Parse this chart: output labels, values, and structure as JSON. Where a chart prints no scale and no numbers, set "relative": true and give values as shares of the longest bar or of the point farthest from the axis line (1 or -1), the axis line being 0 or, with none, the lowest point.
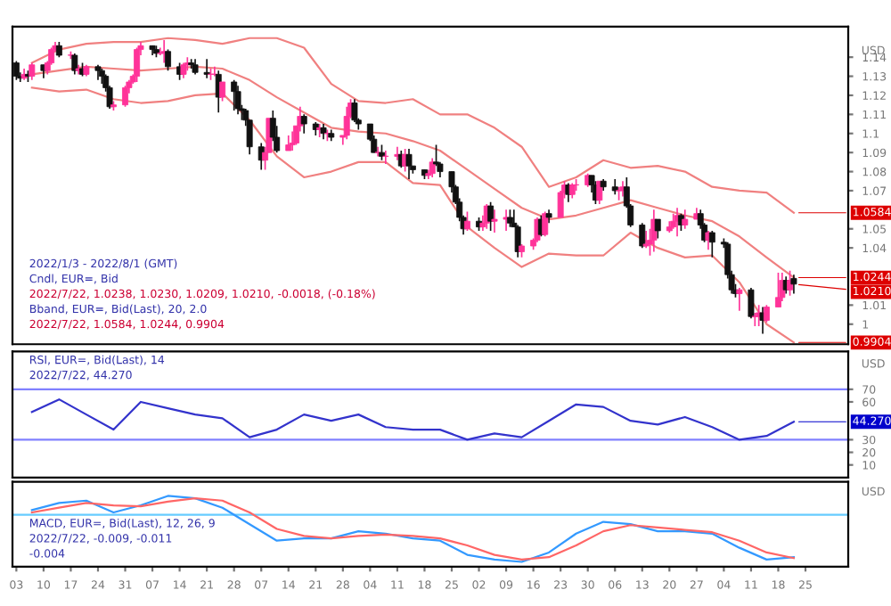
{
  "chart_data": [
    {
      "type": "candlestick",
      "ylabel": "USD",
      "xlim": [
        "2022-01-02",
        "2022-08-05"
      ],
      "ylim": [
        0.9895,
        1.156
      ],
      "yticks": [
        1,
        1.01,
        1.04,
        1.05,
        1.07,
        1.08,
        1.09,
        1.1,
        1.11,
        1.12,
        1.13,
        1.14
      ],
      "tick_labels": "y",
      "annotations": [
        "2022/1/3 - 2022/8/1 (GMT)",
        "Cndl, EUR=, Bid",
        "2022/7/22, 1.0238, 1.0230, 1.0209, 1.0210, -0.0018, (-0.18%)",
        "Bband, EUR=, Bid(Last), 20, 2.0",
        "2022/7/22, 1.0584, 1.0244, 0.9904",
        {
          "text": "1.0584",
          "x": "2022-07-22",
          "y": 1.0584
        },
        {
          "text": "1.0244",
          "x": "2022-07-22",
          "y": 1.0244
        },
        {
          "text": "1.0210",
          "x": "2022-07-22",
          "y": 1.021
        },
        {
          "text": "0.9904",
          "x": "2022-07-22",
          "y": 0.9904
        }
      ],
      "x": [
        "2022-01-03",
        "2022-01-04",
        "2022-01-05",
        "2022-01-06",
        "2022-01-07",
        "2022-01-10",
        "2022-01-11",
        "2022-01-12",
        "2022-01-13",
        "2022-01-14",
        "2022-01-17",
        "2022-01-18",
        "2022-01-19",
        "2022-01-20",
        "2022-01-21",
        "2022-01-24",
        "2022-01-25",
        "2022-01-26",
        "2022-01-27",
        "2022-01-28",
        "2022-01-31",
        "2022-02-01",
        "2022-02-02",
        "2022-02-03",
        "2022-02-04",
        "2022-02-07",
        "2022-02-08",
        "2022-02-09",
        "2022-02-10",
        "2022-02-11",
        "2022-02-14",
        "2022-02-15",
        "2022-02-16",
        "2022-02-17",
        "2022-02-18",
        "2022-02-21",
        "2022-02-22",
        "2022-02-23",
        "2022-02-24",
        "2022-02-25",
        "2022-02-28",
        "2022-03-01",
        "2022-03-02",
        "2022-03-03",
        "2022-03-04",
        "2022-03-07",
        "2022-03-08",
        "2022-03-09",
        "2022-03-10",
        "2022-03-11",
        "2022-03-14",
        "2022-03-15",
        "2022-03-16",
        "2022-03-17",
        "2022-03-18",
        "2022-03-21",
        "2022-03-22",
        "2022-03-23",
        "2022-03-24",
        "2022-03-25",
        "2022-03-28",
        "2022-03-29",
        "2022-03-30",
        "2022-03-31",
        "2022-04-01",
        "2022-04-04",
        "2022-04-05",
        "2022-04-06",
        "2022-04-07",
        "2022-04-08",
        "2022-04-11",
        "2022-04-12",
        "2022-04-13",
        "2022-04-14",
        "2022-04-15",
        "2022-04-18",
        "2022-04-19",
        "2022-04-20",
        "2022-04-21",
        "2022-04-22",
        "2022-04-25",
        "2022-04-26",
        "2022-04-27",
        "2022-04-28",
        "2022-04-29",
        "2022-05-02",
        "2022-05-03",
        "2022-05-04",
        "2022-05-05",
        "2022-05-06",
        "2022-05-09",
        "2022-05-10",
        "2022-05-11",
        "2022-05-12",
        "2022-05-13",
        "2022-05-16",
        "2022-05-17",
        "2022-05-18",
        "2022-05-19",
        "2022-05-20",
        "2022-05-23",
        "2022-05-24",
        "2022-05-25",
        "2022-05-26",
        "2022-05-27",
        "2022-05-30",
        "2022-05-31",
        "2022-06-01",
        "2022-06-02",
        "2022-06-03",
        "2022-06-06",
        "2022-06-07",
        "2022-06-08",
        "2022-06-09",
        "2022-06-10",
        "2022-06-13",
        "2022-06-14",
        "2022-06-15",
        "2022-06-16",
        "2022-06-17",
        "2022-06-20",
        "2022-06-21",
        "2022-06-22",
        "2022-06-23",
        "2022-06-24",
        "2022-06-27",
        "2022-06-28",
        "2022-06-29",
        "2022-06-30",
        "2022-07-01",
        "2022-07-04",
        "2022-07-05",
        "2022-07-06",
        "2022-07-07",
        "2022-07-08",
        "2022-07-11",
        "2022-07-12",
        "2022-07-13",
        "2022-07-14",
        "2022-07-15",
        "2022-07-18",
        "2022-07-19",
        "2022-07-20",
        "2022-07-21",
        "2022-07-22"
      ],
      "ohlc": [
        [
          1.137,
          1.138,
          1.128,
          1.13
        ],
        [
          1.13,
          1.132,
          1.127,
          1.129
        ],
        [
          1.129,
          1.134,
          1.128,
          1.131
        ],
        [
          1.131,
          1.133,
          1.127,
          1.13
        ],
        [
          1.13,
          1.137,
          1.128,
          1.136
        ],
        [
          1.136,
          1.136,
          1.129,
          1.133
        ],
        [
          1.133,
          1.138,
          1.131,
          1.137
        ],
        [
          1.137,
          1.145,
          1.136,
          1.144
        ],
        [
          1.144,
          1.148,
          1.143,
          1.146
        ],
        [
          1.146,
          1.148,
          1.14,
          1.141
        ],
        [
          1.141,
          1.143,
          1.139,
          1.141
        ],
        [
          1.141,
          1.142,
          1.131,
          1.133
        ],
        [
          1.133,
          1.136,
          1.131,
          1.134
        ],
        [
          1.134,
          1.137,
          1.13,
          1.131
        ],
        [
          1.131,
          1.136,
          1.13,
          1.135
        ],
        [
          1.135,
          1.136,
          1.128,
          1.133
        ],
        [
          1.133,
          1.134,
          1.126,
          1.13
        ],
        [
          1.13,
          1.131,
          1.122,
          1.124
        ],
        [
          1.124,
          1.125,
          1.113,
          1.114
        ],
        [
          1.114,
          1.117,
          1.112,
          1.115
        ],
        [
          1.115,
          1.125,
          1.114,
          1.124
        ],
        [
          1.124,
          1.128,
          1.121,
          1.127
        ],
        [
          1.127,
          1.131,
          1.126,
          1.13
        ],
        [
          1.13,
          1.145,
          1.127,
          1.144
        ],
        [
          1.144,
          1.148,
          1.141,
          1.146
        ],
        [
          1.146,
          1.146,
          1.141,
          1.144
        ],
        [
          1.144,
          1.146,
          1.14,
          1.142
        ],
        [
          1.142,
          1.145,
          1.141,
          1.142
        ],
        [
          1.142,
          1.149,
          1.137,
          1.143
        ],
        [
          1.143,
          1.144,
          1.133,
          1.135
        ],
        [
          1.135,
          1.137,
          1.128,
          1.131
        ],
        [
          1.131,
          1.137,
          1.129,
          1.136
        ],
        [
          1.136,
          1.14,
          1.133,
          1.137
        ],
        [
          1.137,
          1.139,
          1.134,
          1.136
        ],
        [
          1.136,
          1.139,
          1.131,
          1.132
        ],
        [
          1.132,
          1.139,
          1.129,
          1.131
        ],
        [
          1.131,
          1.134,
          1.128,
          1.131
        ],
        [
          1.131,
          1.135,
          1.13,
          1.131
        ],
        [
          1.131,
          1.133,
          1.111,
          1.119
        ],
        [
          1.119,
          1.127,
          1.117,
          1.127
        ],
        [
          1.127,
          1.128,
          1.112,
          1.122
        ],
        [
          1.122,
          1.125,
          1.11,
          1.113
        ],
        [
          1.113,
          1.115,
          1.107,
          1.112
        ],
        [
          1.112,
          1.113,
          1.104,
          1.107
        ],
        [
          1.107,
          1.107,
          1.089,
          1.093
        ],
        [
          1.093,
          1.095,
          1.081,
          1.086
        ],
        [
          1.086,
          1.093,
          1.081,
          1.09
        ],
        [
          1.09,
          1.108,
          1.09,
          1.108
        ],
        [
          1.108,
          1.112,
          1.096,
          1.098
        ],
        [
          1.098,
          1.104,
          1.09,
          1.091
        ],
        [
          1.091,
          1.099,
          1.091,
          1.094
        ],
        [
          1.094,
          1.101,
          1.091,
          1.095
        ],
        [
          1.095,
          1.104,
          1.094,
          1.104
        ],
        [
          1.104,
          1.114,
          1.101,
          1.109
        ],
        [
          1.109,
          1.11,
          1.1,
          1.105
        ],
        [
          1.105,
          1.106,
          1.099,
          1.102
        ],
        [
          1.102,
          1.105,
          1.098,
          1.103
        ],
        [
          1.103,
          1.105,
          1.097,
          1.1
        ],
        [
          1.1,
          1.102,
          1.096,
          1.1
        ],
        [
          1.1,
          1.102,
          1.096,
          1.098
        ],
        [
          1.098,
          1.099,
          1.094,
          1.099
        ],
        [
          1.099,
          1.114,
          1.097,
          1.109
        ],
        [
          1.109,
          1.118,
          1.108,
          1.116
        ],
        [
          1.116,
          1.118,
          1.106,
          1.107
        ],
        [
          1.107,
          1.108,
          1.102,
          1.105
        ],
        [
          1.105,
          1.105,
          1.096,
          1.097
        ],
        [
          1.097,
          1.099,
          1.09,
          1.09
        ],
        [
          1.09,
          1.093,
          1.088,
          1.09
        ],
        [
          1.09,
          1.094,
          1.086,
          1.088
        ],
        [
          1.088,
          1.091,
          1.084,
          1.088
        ],
        [
          1.088,
          1.093,
          1.086,
          1.089
        ],
        [
          1.089,
          1.091,
          1.082,
          1.083
        ],
        [
          1.083,
          1.092,
          1.08,
          1.089
        ],
        [
          1.089,
          1.092,
          1.076,
          1.083
        ],
        [
          1.083,
          1.083,
          1.079,
          1.081
        ],
        [
          1.081,
          1.081,
          1.076,
          1.078
        ],
        [
          1.078,
          1.081,
          1.076,
          1.079
        ],
        [
          1.079,
          1.087,
          1.077,
          1.085
        ],
        [
          1.085,
          1.094,
          1.083,
          1.084
        ],
        [
          1.084,
          1.085,
          1.077,
          1.08
        ],
        [
          1.08,
          1.08,
          1.069,
          1.072
        ],
        [
          1.072,
          1.073,
          1.063,
          1.064
        ],
        [
          1.064,
          1.066,
          1.054,
          1.056
        ],
        [
          1.056,
          1.057,
          1.047,
          1.05
        ],
        [
          1.05,
          1.059,
          1.049,
          1.054
        ],
        [
          1.054,
          1.056,
          1.049,
          1.051
        ],
        [
          1.051,
          1.057,
          1.049,
          1.053
        ],
        [
          1.053,
          1.063,
          1.05,
          1.062
        ],
        [
          1.062,
          1.064,
          1.049,
          1.054
        ],
        [
          1.054,
          1.06,
          1.048,
          1.055
        ],
        [
          1.055,
          1.06,
          1.049,
          1.056
        ],
        [
          1.056,
          1.06,
          1.051,
          1.053
        ],
        [
          1.053,
          1.06,
          1.051,
          1.051
        ],
        [
          1.051,
          1.052,
          1.035,
          1.038
        ],
        [
          1.038,
          1.042,
          1.035,
          1.041
        ],
        [
          1.041,
          1.045,
          1.039,
          1.044
        ],
        [
          1.044,
          1.056,
          1.043,
          1.055
        ],
        [
          1.055,
          1.057,
          1.046,
          1.047
        ],
        [
          1.047,
          1.059,
          1.046,
          1.058
        ],
        [
          1.058,
          1.06,
          1.053,
          1.056
        ],
        [
          1.056,
          1.07,
          1.056,
          1.069
        ],
        [
          1.069,
          1.075,
          1.066,
          1.073
        ],
        [
          1.073,
          1.074,
          1.064,
          1.068
        ],
        [
          1.068,
          1.074,
          1.066,
          1.073
        ],
        [
          1.073,
          1.076,
          1.07,
          1.073
        ],
        [
          1.073,
          1.079,
          1.072,
          1.078
        ],
        [
          1.078,
          1.078,
          1.069,
          1.073
        ],
        [
          1.073,
          1.075,
          1.063,
          1.065
        ],
        [
          1.065,
          1.075,
          1.063,
          1.075
        ],
        [
          1.075,
          1.076,
          1.07,
          1.072
        ],
        [
          1.072,
          1.076,
          1.068,
          1.07
        ],
        [
          1.07,
          1.072,
          1.065,
          1.07
        ],
        [
          1.07,
          1.075,
          1.067,
          1.072
        ],
        [
          1.072,
          1.077,
          1.061,
          1.062
        ],
        [
          1.062,
          1.063,
          1.051,
          1.052
        ],
        [
          1.052,
          1.053,
          1.04,
          1.041
        ],
        [
          1.041,
          1.049,
          1.04,
          1.042
        ],
        [
          1.042,
          1.05,
          1.036,
          1.044
        ],
        [
          1.044,
          1.06,
          1.038,
          1.055
        ],
        [
          1.055,
          1.055,
          1.045,
          1.049
        ],
        [
          1.049,
          1.054,
          1.048,
          1.051
        ],
        [
          1.051,
          1.058,
          1.05,
          1.054
        ],
        [
          1.054,
          1.061,
          1.046,
          1.057
        ],
        [
          1.057,
          1.058,
          1.049,
          1.052
        ],
        [
          1.052,
          1.06,
          1.05,
          1.055
        ],
        [
          1.055,
          1.061,
          1.055,
          1.058
        ],
        [
          1.058,
          1.06,
          1.05,
          1.052
        ],
        [
          1.052,
          1.053,
          1.043,
          1.044
        ],
        [
          1.044,
          1.049,
          1.039,
          1.048
        ],
        [
          1.048,
          1.049,
          1.035,
          1.043
        ],
        [
          1.043,
          1.045,
          1.04,
          1.042
        ],
        [
          1.042,
          1.043,
          1.024,
          1.026
        ],
        [
          1.026,
          1.028,
          1.016,
          1.018
        ],
        [
          1.018,
          1.021,
          1.014,
          1.016
        ],
        [
          1.016,
          1.019,
          1.007,
          1.018
        ],
        [
          1.018,
          1.019,
          1.003,
          1.004
        ],
        [
          1.004,
          1.006,
          0.999,
          1.004
        ],
        [
          1.004,
          1.01,
          0.999,
          1.006
        ],
        [
          1.006,
          1.009,
          0.995,
          1.002
        ],
        [
          1.002,
          1.01,
          1.001,
          1.009
        ],
        [
          1.009,
          1.027,
          1.009,
          1.014
        ],
        [
          1.014,
          1.027,
          1.012,
          1.023
        ],
        [
          1.023,
          1.025,
          1.016,
          1.018
        ],
        [
          1.018,
          1.028,
          1.015,
          1.023
        ],
        [
          1.024,
          1.026,
          1.016,
          1.021
        ]
      ],
      "series": [
        {
          "type": "line",
          "color": "#f08080",
          "x": [
            "2022-01-07",
            "2022-01-14",
            "2022-01-21",
            "2022-01-28",
            "2022-02-04",
            "2022-02-11",
            "2022-02-18",
            "2022-02-25",
            "2022-03-04",
            "2022-03-11",
            "2022-03-18",
            "2022-03-25",
            "2022-04-01",
            "2022-04-08",
            "2022-04-15",
            "2022-04-22",
            "2022-04-29",
            "2022-05-06",
            "2022-05-13",
            "2022-05-20",
            "2022-05-27",
            "2022-06-03",
            "2022-06-10",
            "2022-06-17",
            "2022-06-24",
            "2022-07-01",
            "2022-07-08",
            "2022-07-15",
            "2022-07-22"
          ],
          "values": [
            1.137,
            1.144,
            1.147,
            1.148,
            1.148,
            1.15,
            1.149,
            1.147,
            1.15,
            1.15,
            1.145,
            1.126,
            1.117,
            1.116,
            1.118,
            1.11,
            1.11,
            1.103,
            1.093,
            1.072,
            1.077,
            1.086,
            1.082,
            1.083,
            1.08,
            1.072,
            1.07,
            1.069,
            1.0584
          ]
        },
        {
          "type": "line",
          "color": "#f08080",
          "x": [
            "2022-01-07",
            "2022-01-14",
            "2022-01-21",
            "2022-01-28",
            "2022-02-04",
            "2022-02-11",
            "2022-02-18",
            "2022-02-25",
            "2022-03-04",
            "2022-03-11",
            "2022-03-18",
            "2022-03-25",
            "2022-04-01",
            "2022-04-08",
            "2022-04-15",
            "2022-04-22",
            "2022-04-29",
            "2022-05-06",
            "2022-05-13",
            "2022-05-20",
            "2022-05-27",
            "2022-06-03",
            "2022-06-10",
            "2022-06-17",
            "2022-06-24",
            "2022-07-01",
            "2022-07-08",
            "2022-07-15",
            "2022-07-22"
          ],
          "values": [
            1.131,
            1.133,
            1.135,
            1.134,
            1.133,
            1.134,
            1.135,
            1.134,
            1.128,
            1.119,
            1.111,
            1.103,
            1.101,
            1.1,
            1.096,
            1.091,
            1.081,
            1.071,
            1.061,
            1.055,
            1.057,
            1.061,
            1.065,
            1.061,
            1.057,
            1.054,
            1.046,
            1.035,
            1.0244
          ]
        },
        {
          "type": "line",
          "color": "#f08080",
          "x": [
            "2022-01-07",
            "2022-01-14",
            "2022-01-21",
            "2022-01-28",
            "2022-02-04",
            "2022-02-11",
            "2022-02-18",
            "2022-02-25",
            "2022-03-04",
            "2022-03-11",
            "2022-03-18",
            "2022-03-25",
            "2022-04-01",
            "2022-04-08",
            "2022-04-15",
            "2022-04-22",
            "2022-04-29",
            "2022-05-06",
            "2022-05-13",
            "2022-05-20",
            "2022-05-27",
            "2022-06-03",
            "2022-06-10",
            "2022-06-17",
            "2022-06-24",
            "2022-07-01",
            "2022-07-08",
            "2022-07-15",
            "2022-07-22"
          ],
          "values": [
            1.124,
            1.122,
            1.123,
            1.118,
            1.116,
            1.117,
            1.12,
            1.121,
            1.107,
            1.088,
            1.077,
            1.08,
            1.085,
            1.085,
            1.074,
            1.073,
            1.051,
            1.04,
            1.03,
            1.037,
            1.036,
            1.036,
            1.048,
            1.04,
            1.035,
            1.036,
            1.022,
            1.0,
            0.9904
          ]
        }
      ]
    },
    {
      "type": "line",
      "ylabel": "USD",
      "xlim": [
        "2022-01-02",
        "2022-08-05"
      ],
      "ylim": [
        0,
        100
      ],
      "yticks": [
        10,
        20,
        30,
        60,
        70
      ],
      "tick_labels": "y",
      "annotations": [
        "RSI, EUR=, Bid(Last), 14",
        "2022/7/22, 44.270",
        {
          "text": "44.270",
          "x": "2022-07-22",
          "y": 44.27
        }
      ],
      "ref_lines": [
        {
          "axis": "y",
          "value": 70,
          "color": "#8080ff"
        },
        {
          "axis": "y",
          "value": 30,
          "color": "#8080ff"
        }
      ],
      "series": [
        {
          "color": "#3333cc",
          "x": [
            "2022-01-07",
            "2022-01-14",
            "2022-01-21",
            "2022-01-28",
            "2022-02-04",
            "2022-02-11",
            "2022-02-18",
            "2022-02-25",
            "2022-03-04",
            "2022-03-11",
            "2022-03-18",
            "2022-03-25",
            "2022-04-01",
            "2022-04-08",
            "2022-04-15",
            "2022-04-22",
            "2022-04-29",
            "2022-05-06",
            "2022-05-13",
            "2022-05-20",
            "2022-05-27",
            "2022-06-03",
            "2022-06-10",
            "2022-06-17",
            "2022-06-24",
            "2022-07-01",
            "2022-07-08",
            "2022-07-15",
            "2022-07-22"
          ],
          "values": [
            52,
            62,
            50,
            38,
            60,
            55,
            50,
            47,
            32,
            38,
            50,
            45,
            50,
            40,
            38,
            38,
            30,
            35,
            32,
            45,
            58,
            56,
            45,
            42,
            48,
            40,
            30,
            33,
            44.27
          ]
        }
      ]
    },
    {
      "type": "line",
      "relative": true,
      "ylabel": "USD",
      "xlim": [
        "2022-01-02",
        "2022-08-05"
      ],
      "tick_labels": "x",
      "xticks": [
        {
          "value": "2022-01-03",
          "label": "03"
        },
        {
          "value": "2022-01-10",
          "label": "10"
        },
        {
          "value": "2022-01-17",
          "label": "17"
        },
        {
          "value": "2022-01-24",
          "label": "24"
        },
        {
          "value": "2022-01-31",
          "label": "31"
        },
        {
          "value": "2022-02-07",
          "label": "07"
        },
        {
          "value": "2022-02-14",
          "label": "14"
        },
        {
          "value": "2022-02-21",
          "label": "21"
        },
        {
          "value": "2022-02-28",
          "label": "28"
        },
        {
          "value": "2022-03-07",
          "label": "07"
        },
        {
          "value": "2022-03-14",
          "label": "14"
        },
        {
          "value": "2022-03-21",
          "label": "21"
        },
        {
          "value": "2022-03-28",
          "label": "28"
        },
        {
          "value": "2022-04-04",
          "label": "04"
        },
        {
          "value": "2022-04-11",
          "label": "11"
        },
        {
          "value": "2022-04-18",
          "label": "18"
        },
        {
          "value": "2022-04-25",
          "label": "25"
        },
        {
          "value": "2022-05-02",
          "label": "02"
        },
        {
          "value": "2022-05-09",
          "label": "09"
        },
        {
          "value": "2022-05-16",
          "label": "16"
        },
        {
          "value": "2022-05-23",
          "label": "23"
        },
        {
          "value": "2022-05-30",
          "label": "30"
        },
        {
          "value": "2022-06-06",
          "label": "06"
        },
        {
          "value": "2022-06-13",
          "label": "13"
        },
        {
          "value": "2022-06-20",
          "label": "20"
        },
        {
          "value": "2022-06-27",
          "label": "27"
        },
        {
          "value": "2022-07-04",
          "label": "04"
        },
        {
          "value": "2022-07-11",
          "label": "11"
        },
        {
          "value": "2022-07-18",
          "label": "18"
        },
        {
          "value": "2022-07-25",
          "label": "25"
        }
      ],
      "annotations": [
        "MACD, EUR=, Bid(Last), 12, 26, 9",
        "2022/7/22, -0.009, -0.011",
        "-0.004"
      ],
      "ref_lines": [
        {
          "axis": "y",
          "value": 0,
          "color": "#66ccff"
        }
      ],
      "series": [
        {
          "color": "#3399ff",
          "x": [
            "2022-01-07",
            "2022-01-14",
            "2022-01-21",
            "2022-01-28",
            "2022-02-04",
            "2022-02-11",
            "2022-02-18",
            "2022-02-25",
            "2022-03-04",
            "2022-03-11",
            "2022-03-18",
            "2022-03-25",
            "2022-04-01",
            "2022-04-08",
            "2022-04-15",
            "2022-04-22",
            "2022-04-29",
            "2022-05-06",
            "2022-05-13",
            "2022-05-20",
            "2022-05-27",
            "2022-06-03",
            "2022-06-10",
            "2022-06-17",
            "2022-06-24",
            "2022-07-01",
            "2022-07-08",
            "2022-07-15",
            "2022-07-22"
          ],
          "values": [
            0.1,
            0.25,
            0.3,
            0.05,
            0.2,
            0.4,
            0.35,
            0.15,
            -0.2,
            -0.55,
            -0.5,
            -0.5,
            -0.35,
            -0.4,
            -0.5,
            -0.55,
            -0.85,
            -0.95,
            -1,
            -0.8,
            -0.4,
            -0.15,
            -0.2,
            -0.35,
            -0.35,
            -0.4,
            -0.7,
            -0.95,
            -0.9
          ]
        },
        {
          "color": "#ff6666",
          "x": [
            "2022-01-07",
            "2022-01-14",
            "2022-01-21",
            "2022-01-28",
            "2022-02-04",
            "2022-02-11",
            "2022-02-18",
            "2022-02-25",
            "2022-03-04",
            "2022-03-11",
            "2022-03-18",
            "2022-03-25",
            "2022-04-01",
            "2022-04-08",
            "2022-04-15",
            "2022-04-22",
            "2022-04-29",
            "2022-05-06",
            "2022-05-13",
            "2022-05-20",
            "2022-05-27",
            "2022-06-03",
            "2022-06-10",
            "2022-06-17",
            "2022-06-24",
            "2022-07-01",
            "2022-07-08",
            "2022-07-15",
            "2022-07-22"
          ],
          "values": [
            0.05,
            0.15,
            0.25,
            0.2,
            0.18,
            0.28,
            0.35,
            0.3,
            0.05,
            -0.3,
            -0.45,
            -0.5,
            -0.45,
            -0.42,
            -0.45,
            -0.5,
            -0.65,
            -0.85,
            -0.95,
            -0.9,
            -0.65,
            -0.35,
            -0.22,
            -0.27,
            -0.32,
            -0.37,
            -0.55,
            -0.8,
            -0.92
          ]
        }
      ]
    }
  ]
}
